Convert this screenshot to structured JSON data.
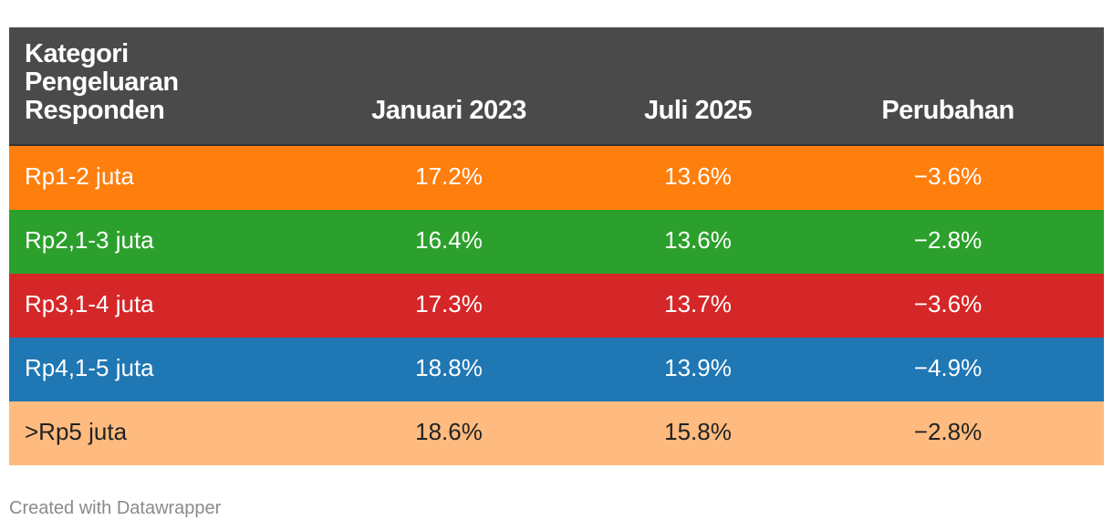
{
  "chart_data": {
    "type": "table",
    "columns": [
      "Kategori Pengeluaran Responden",
      "Januari 2023",
      "Juli 2025",
      "Perubahan"
    ],
    "rows": [
      {
        "category": "Rp1-2 juta",
        "jan2023": "17.2%",
        "jul2025": "13.6%",
        "change": "−3.6%",
        "bg": "#ff7f0e",
        "fg": "#ffffff"
      },
      {
        "category": "Rp2,1-3 juta",
        "jan2023": "16.4%",
        "jul2025": "13.6%",
        "change": "−2.8%",
        "bg": "#2ca02c",
        "fg": "#ffffff"
      },
      {
        "category": "Rp3,1-4 juta",
        "jan2023": "17.3%",
        "jul2025": "13.7%",
        "change": "−3.6%",
        "bg": "#d62728",
        "fg": "#ffffff"
      },
      {
        "category": "Rp4,1-5 juta",
        "jan2023": "18.8%",
        "jul2025": "13.9%",
        "change": "−4.9%",
        "bg": "#1f77b4",
        "fg": "#ffffff"
      },
      {
        "category": ">Rp5 juta",
        "jan2023": "18.6%",
        "jul2025": "15.8%",
        "change": "−2.8%",
        "bg": "#ffbb7f",
        "fg": "#222222"
      }
    ]
  },
  "header": {
    "category_label": "Kategori Pengeluaran Responden",
    "col1": "Januari 2023",
    "col2": "Juli 2025",
    "col3": "Perubahan",
    "bg": "#4a4a4a"
  },
  "footer": {
    "credit": "Created with Datawrapper"
  }
}
